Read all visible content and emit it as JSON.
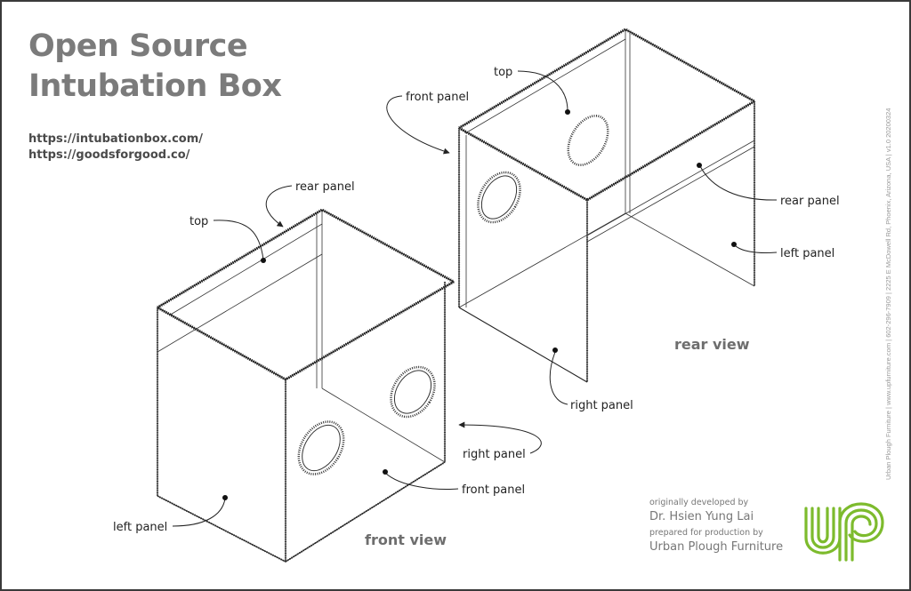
{
  "title": {
    "line1": "Open Source",
    "line2": "Intubation Box"
  },
  "links": [
    "https://intubationbox.com/",
    "https://goodsforgood.co/"
  ],
  "front_view": {
    "caption": "front view",
    "labels": {
      "rear_panel": "rear panel",
      "top": "top",
      "left_panel": "left panel",
      "right_panel": "right panel",
      "front_panel": "front panel"
    }
  },
  "rear_view": {
    "caption": "rear view",
    "labels": {
      "top": "top",
      "front_panel": "front panel",
      "rear_panel": "rear panel",
      "left_panel": "left panel",
      "right_panel": "right panel"
    }
  },
  "credits": {
    "developed_by_prefix": "originally developed by",
    "developer": "Dr. Hsien Yung Lai",
    "prepared_by_prefix": "prepared for production by",
    "producer": "Urban Plough Furniture"
  },
  "vertical_info": "Urban Plough Furniture  |  www.upfurniture.com  |  602-296-7909  |  2225 E McDowell Rd, Phoenix, Arizona, USA  |  v1.0 20200324",
  "logo": {
    "icon": "upf-logo-icon",
    "color": "#7dbb2d"
  }
}
